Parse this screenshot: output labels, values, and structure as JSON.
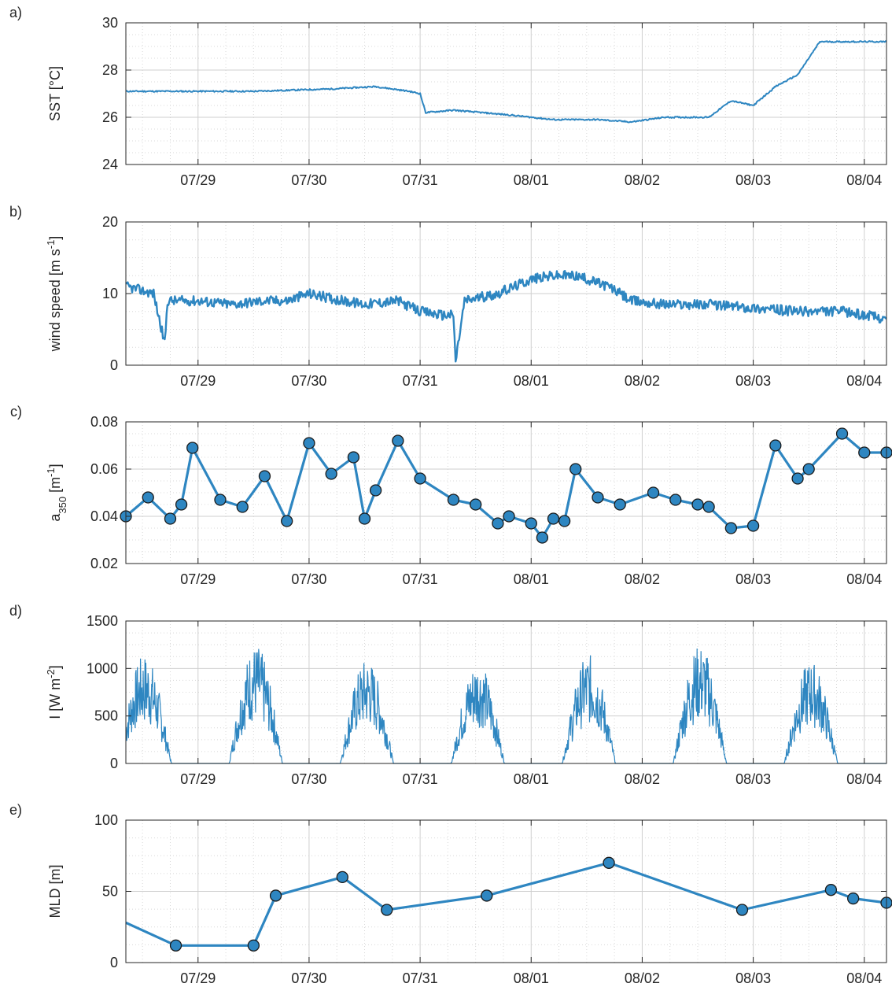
{
  "figure": {
    "line_color": "#2e86c1",
    "marker_edge": "#1a1a1a",
    "x_tick_labels": [
      "07/29",
      "07/30",
      "07/31",
      "08/01",
      "08/02",
      "08/03",
      "08/04"
    ],
    "x_range_days": [
      28.35,
      35.2
    ]
  },
  "chart_data": [
    {
      "type": "line",
      "panel_label": "a)",
      "ylabel": "SST [°C]",
      "ylim": [
        24,
        30
      ],
      "yticks": [
        24,
        26,
        28,
        30
      ],
      "grid": true,
      "x": [
        "07/28 08:24",
        "07/28 19:12",
        "07/29 12:00",
        "07/30 04:48",
        "07/30 14:24",
        "07/30 21:36",
        "07/31 00:00",
        "07/31 01:12",
        "07/31 07:12",
        "07/31 19:12",
        "08/01 04:48",
        "08/01 14:24",
        "08/01 21:36",
        "08/02 04:48",
        "08/02 09:36",
        "08/02 14:24",
        "08/02 19:12",
        "08/03 00:00",
        "08/03 04:48",
        "08/03 09:36",
        "08/03 14:24",
        "08/04 04:48"
      ],
      "series": [
        {
          "values": [
            27.1,
            27.1,
            27.1,
            27.2,
            27.3,
            27.1,
            27.0,
            26.2,
            26.3,
            26.1,
            25.9,
            25.9,
            25.8,
            26.0,
            26.0,
            26.0,
            26.7,
            26.5,
            27.3,
            27.8,
            29.2,
            29.2
          ]
        }
      ]
    },
    {
      "type": "line",
      "panel_label": "b)",
      "ylabel": "wind speed [m s-1]",
      "ylim": [
        0,
        20
      ],
      "yticks": [
        0,
        10,
        20
      ],
      "grid": true,
      "x": [
        "07/28 08:24",
        "07/28 14:24",
        "07/28 16:48",
        "07/28 17:24",
        "07/28 19:12",
        "07/29 00:00",
        "07/29 07:12",
        "07/29 14:24",
        "07/29 19:12",
        "07/30 00:00",
        "07/30 07:12",
        "07/30 12:00",
        "07/30 19:12",
        "07/31 00:00",
        "07/31 04:48",
        "07/31 07:12",
        "07/31 07:40",
        "07/31 09:36",
        "07/31 16:48",
        "08/01 00:00",
        "08/01 04:48",
        "08/01 09:36",
        "08/01 16:48",
        "08/01 21:36",
        "08/02 04:48",
        "08/02 14:24",
        "08/03 00:00",
        "08/03 09:36",
        "08/03 19:12",
        "08/04 00:00",
        "08/04 04:48"
      ],
      "series": [
        {
          "values": [
            11,
            10,
            3,
            9,
            9,
            9,
            8.5,
            9,
            9,
            10,
            9,
            8.5,
            9,
            7.5,
            7,
            7,
            0.5,
            9,
            10,
            12,
            12.5,
            12.5,
            11,
            9,
            8.5,
            8.5,
            8,
            7.5,
            7.5,
            7,
            6.5
          ]
        }
      ]
    },
    {
      "type": "line",
      "panel_label": "c)",
      "ylabel": "a350 [m-1]",
      "ylim": [
        0.02,
        0.08
      ],
      "yticks": [
        0.02,
        0.04,
        0.06,
        0.08
      ],
      "grid": true,
      "x": [
        "07/28 08:24",
        "07/28 13:12",
        "07/28 18:00",
        "07/28 20:24",
        "07/28 22:48",
        "07/29 04:48",
        "07/29 09:36",
        "07/29 14:24",
        "07/29 19:12",
        "07/30 00:00",
        "07/30 04:48",
        "07/30 09:36",
        "07/30 12:00",
        "07/30 14:24",
        "07/30 19:12",
        "07/31 00:00",
        "07/31 07:12",
        "07/31 12:00",
        "07/31 16:48",
        "07/31 19:12",
        "08/01 00:00",
        "08/01 02:24",
        "08/01 04:48",
        "08/01 07:12",
        "08/01 09:36",
        "08/01 14:24",
        "08/01 19:12",
        "08/02 02:24",
        "08/02 07:12",
        "08/02 12:00",
        "08/02 14:24",
        "08/02 19:12",
        "08/03 00:00",
        "08/03 04:48",
        "08/03 09:36",
        "08/03 12:00",
        "08/03 19:12",
        "08/04 00:00",
        "08/04 04:48"
      ],
      "series": [
        {
          "values": [
            0.04,
            0.048,
            0.039,
            0.045,
            0.069,
            0.047,
            0.044,
            0.057,
            0.038,
            0.071,
            0.058,
            0.065,
            0.039,
            0.051,
            0.072,
            0.056,
            0.047,
            0.045,
            0.037,
            0.04,
            0.037,
            0.031,
            0.039,
            0.038,
            0.06,
            0.048,
            0.045,
            0.05,
            0.047,
            0.045,
            0.044,
            0.035,
            0.036,
            0.07,
            0.056,
            0.06,
            0.075,
            0.067,
            0.067
          ]
        }
      ]
    },
    {
      "type": "area",
      "panel_label": "d)",
      "ylabel": "I [W m-2]",
      "ylim": [
        0,
        1500
      ],
      "yticks": [
        0,
        500,
        1000,
        1500
      ],
      "grid": true,
      "daily_peak_days": [
        "07/28",
        "07/29",
        "07/30",
        "07/31",
        "08/01",
        "08/02",
        "08/03"
      ],
      "daily_peak_values": [
        1150,
        1250,
        1100,
        1080,
        1150,
        1250,
        1080
      ]
    },
    {
      "type": "line",
      "panel_label": "e)",
      "ylabel": "MLD [m]",
      "ylim": [
        0,
        100
      ],
      "yticks": [
        0,
        50,
        100
      ],
      "grid": true,
      "x": [
        "07/28 08:24",
        "07/28 19:12",
        "07/29 12:00",
        "07/29 16:48",
        "07/30 07:12",
        "07/30 16:48",
        "07/31 14:24",
        "08/01 16:48",
        "08/02 21:36",
        "08/03 16:48",
        "08/03 21:36",
        "08/04 04:48"
      ],
      "series": [
        {
          "values": [
            28,
            12,
            12,
            47,
            60,
            37,
            47,
            70,
            37,
            51,
            45,
            42
          ]
        }
      ]
    }
  ]
}
